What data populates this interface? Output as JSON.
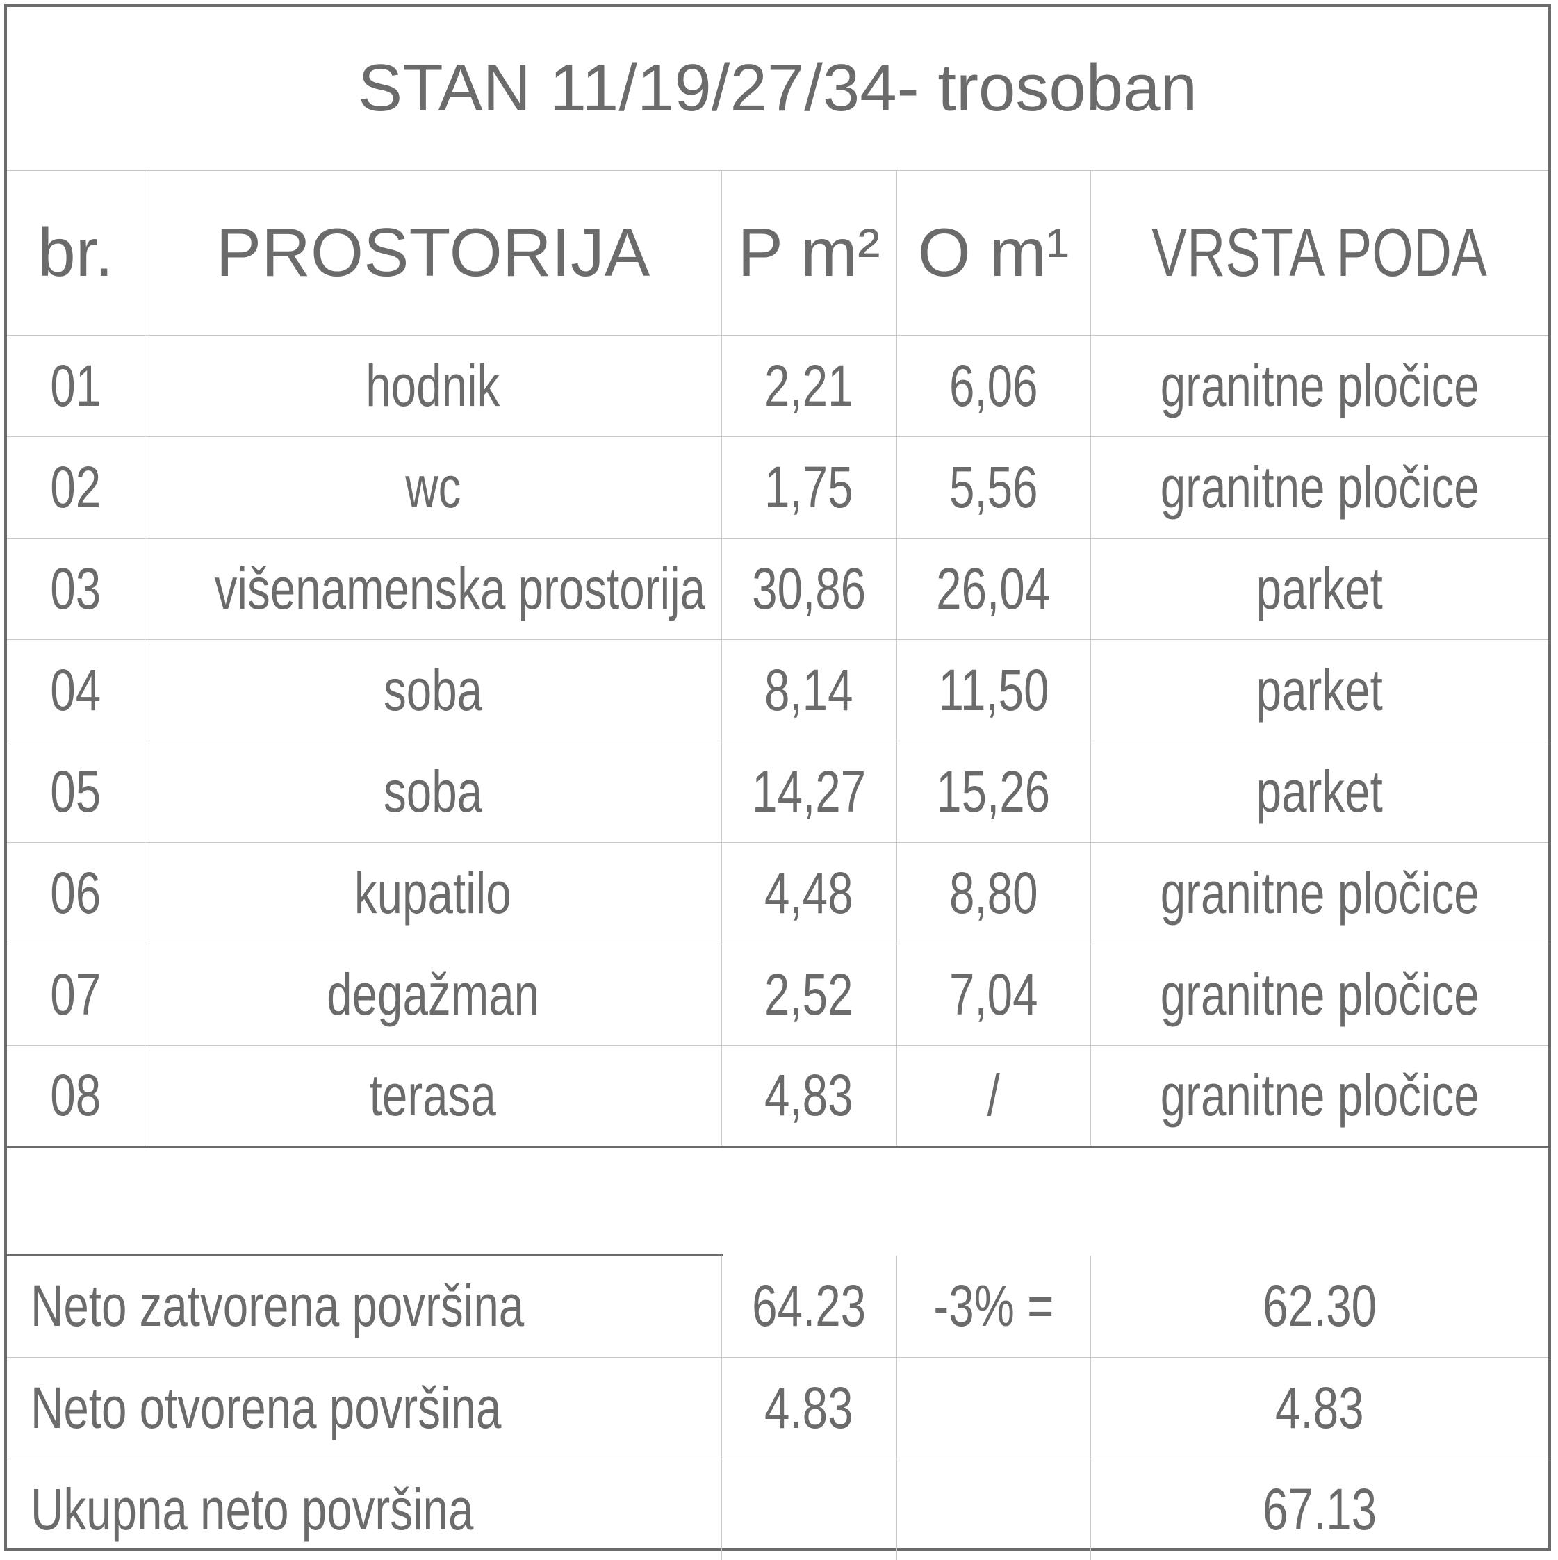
{
  "title": "STAN 11/19/27/34- trosoban",
  "headers": {
    "br": "br.",
    "prostorija": "PROSTORIJA",
    "p": "P m²",
    "o": "O m¹",
    "vrsta": "VRSTA PODA"
  },
  "rows": [
    {
      "br": "01",
      "name": "hodnik",
      "p": "2,21",
      "o": "6,06",
      "floor": "granitne pločice"
    },
    {
      "br": "02",
      "name": "wc",
      "p": "1,75",
      "o": "5,56",
      "floor": "granitne pločice"
    },
    {
      "br": "03",
      "name": "višenamenska prostorija",
      "p": "30,86",
      "o": "26,04",
      "floor": "parket"
    },
    {
      "br": "04",
      "name": "soba",
      "p": "8,14",
      "o": "11,50",
      "floor": "parket"
    },
    {
      "br": "05",
      "name": "soba",
      "p": "14,27",
      "o": "15,26",
      "floor": "parket"
    },
    {
      "br": "06",
      "name": "kupatilo",
      "p": "4,48",
      "o": "8,80",
      "floor": "granitne pločice"
    },
    {
      "br": "07",
      "name": "degažman",
      "p": "2,52",
      "o": "7,04",
      "floor": "granitne pločice"
    },
    {
      "br": "08",
      "name": "terasa",
      "p": "4,83",
      "o": "/",
      "floor": "granitne pločice"
    }
  ],
  "totals": [
    {
      "label": "Neto zatvorena površina",
      "p": "64.23",
      "o": "-3% =",
      "result": "62.30"
    },
    {
      "label": "Neto otvorena površina",
      "p": "4.83",
      "o": "",
      "result": "4.83"
    },
    {
      "label": "Ukupna neto površina",
      "p": "",
      "o": "",
      "result": "67.13"
    }
  ]
}
